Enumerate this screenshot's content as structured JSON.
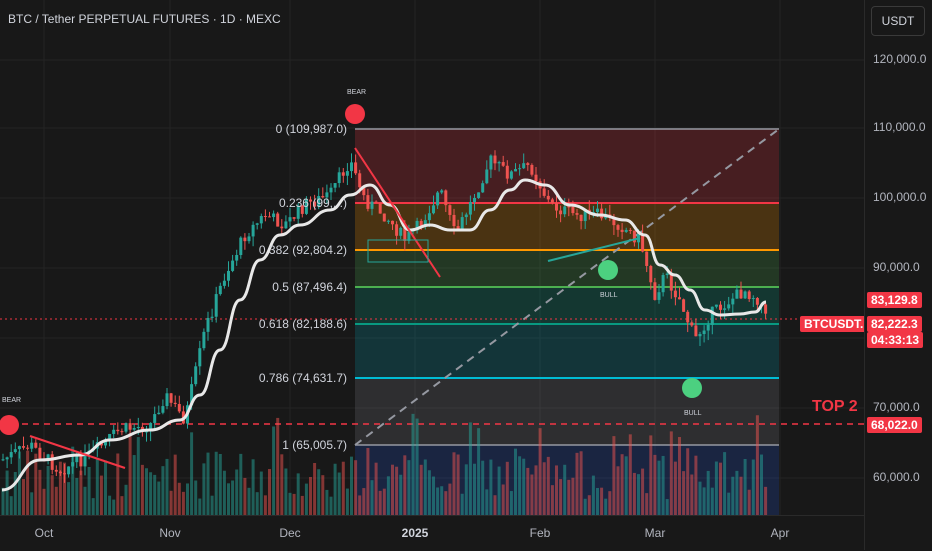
{
  "chart": {
    "title": "BTC / Tether PERPETUAL FUTURES · 1D · MEXC",
    "currency": "USDT",
    "symbol_tag": "BTCUSDT.P",
    "top_label": "TOP 2"
  },
  "price_axis": {
    "ticks": [
      "120,000.0",
      "110,000.0",
      "100,000.0",
      "90,000.0",
      "70,000.0",
      "60,000.0"
    ],
    "tags": [
      {
        "label": "83,129.8",
        "color": "#f23645"
      },
      {
        "label": "82,222.3",
        "color": "#f23645"
      },
      {
        "label": "04:33:13",
        "color": "#f23645"
      },
      {
        "label": "68,022.0",
        "color": "#f23645"
      }
    ]
  },
  "time_axis": {
    "labels": [
      {
        "text": "Oct",
        "bold": false
      },
      {
        "text": "Nov",
        "bold": false
      },
      {
        "text": "Dec",
        "bold": false
      },
      {
        "text": "2025",
        "bold": true
      },
      {
        "text": "Feb",
        "bold": false
      },
      {
        "text": "Mar",
        "bold": false
      },
      {
        "text": "Apr",
        "bold": false
      }
    ]
  },
  "fibonacci": [
    {
      "label": "0 (109,987.0)",
      "color": "#9598a1"
    },
    {
      "label": "0.236 (99,...)",
      "color": "#f23645"
    },
    {
      "label": "0.382 (92,804.2)",
      "color": "#ff9800"
    },
    {
      "label": "0.5 (87,496.4)",
      "color": "#4caf50"
    },
    {
      "label": "0.618 (82,188.6)",
      "color": "#089981"
    },
    {
      "label": "0.786 (74,631.7)",
      "color": "#00bcd4"
    },
    {
      "label": "1 (65,005.7)",
      "color": "#9598a1"
    }
  ],
  "signals": [
    {
      "label": "BEAR",
      "color": "#f23645"
    },
    {
      "label": "BEAR",
      "color": "#f23645"
    },
    {
      "label": "BULL",
      "color": "#26a69a"
    },
    {
      "label": "BULL",
      "color": "#26a69a"
    }
  ],
  "colors": {
    "up": "#26a69a",
    "down": "#ef5350",
    "ma": "#e0e0e0"
  }
}
